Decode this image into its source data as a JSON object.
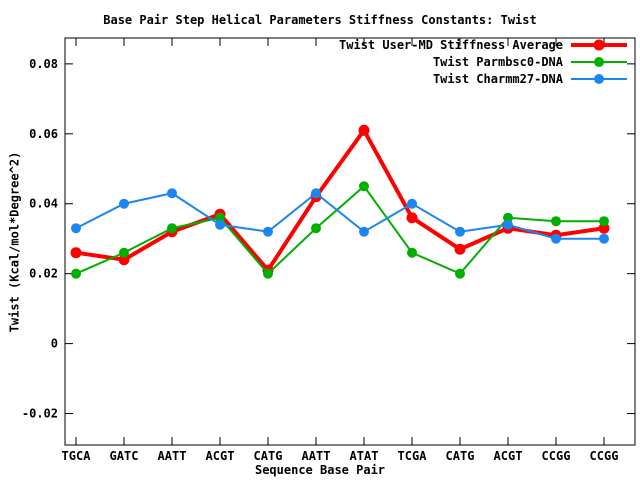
{
  "chart_data": {
    "type": "line",
    "title": "Base Pair Step Helical Parameters Stiffness Constants: Twist",
    "xlabel": "Sequence Base Pair",
    "ylabel": "Twist (Kcal/mol*Degree^2)",
    "categories": [
      "TGCA",
      "GATC",
      "AATT",
      "ACGT",
      "CATG",
      "AATT",
      "ATAT",
      "TCGA",
      "CATG",
      "ACGT",
      "CCGG",
      "CCGG"
    ],
    "series": [
      {
        "name": "Twist User-MD Stiffness Average",
        "color": "#ff0000",
        "line_width": 4,
        "marker_radius": 5.5,
        "values": [
          0.026,
          0.024,
          0.032,
          0.037,
          0.021,
          0.042,
          0.061,
          0.036,
          0.027,
          0.033,
          0.031,
          0.033
        ]
      },
      {
        "name": "Twist Parmbsc0-DNA",
        "color": "#00b000",
        "line_width": 2,
        "marker_radius": 5,
        "values": [
          0.02,
          0.026,
          0.033,
          0.036,
          0.02,
          0.033,
          0.045,
          0.026,
          0.02,
          0.036,
          0.035,
          0.035
        ]
      },
      {
        "name": "Twist Charmm27-DNA",
        "color": "#1c86ee",
        "line_width": 2,
        "marker_radius": 5,
        "values": [
          0.033,
          0.04,
          0.043,
          0.034,
          0.032,
          0.043,
          0.032,
          0.04,
          0.032,
          0.034,
          0.03,
          0.03
        ]
      }
    ],
    "yticks": {
      "values": [
        0.08,
        0.06,
        0.04,
        0.02,
        0,
        -0.02
      ],
      "labels": [
        "0.08",
        "0.06",
        "0.04",
        "0.02",
        "0",
        "-0.02"
      ]
    },
    "ylim": [
      -0.029,
      0.0874
    ],
    "grid": false,
    "legend_position": "top-right-inside",
    "axis_color": "#000000",
    "background": "#ffffff"
  }
}
